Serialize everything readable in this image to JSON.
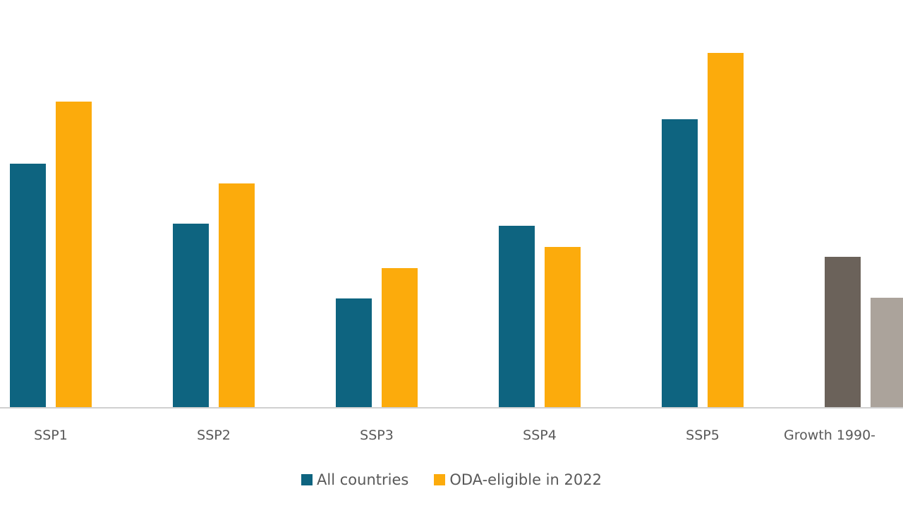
{
  "chart_data": {
    "type": "bar",
    "title": "",
    "xlabel": "",
    "ylabel": "",
    "ylim": [
      0,
      5.2
    ],
    "grid": false,
    "legend_position": "bottom",
    "categories": [
      "SSP1",
      "SSP2",
      "SSP3",
      "SSP4",
      "SSP5",
      "Growth 1990-"
    ],
    "series": [
      {
        "name": "All countries",
        "color": "#0e6480",
        "values": [
          3.45,
          2.6,
          1.54,
          2.57,
          4.08,
          null
        ]
      },
      {
        "name": "ODA-eligible in 2022",
        "color": "#fcab0c",
        "values": [
          4.33,
          3.17,
          1.97,
          2.27,
          5.02,
          null
        ]
      }
    ],
    "historical": {
      "category": "Growth 1990-",
      "values": [
        2.13,
        1.55
      ],
      "colors": [
        "#6b625a",
        "#aba39b"
      ]
    },
    "notes": "No value axis is shown; values are relative bar heights."
  },
  "legend": [
    {
      "label": "All countries",
      "color": "#0e6480"
    },
    {
      "label": "ODA-eligible in 2022",
      "color": "#fcab0c"
    }
  ]
}
